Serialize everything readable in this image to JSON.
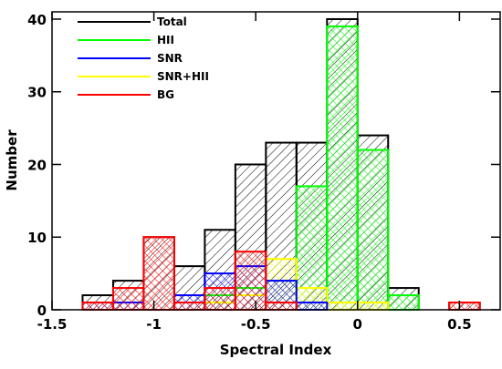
{
  "chart_data": {
    "type": "histogram",
    "xlabel": "Spectral Index",
    "ylabel": "Number",
    "bins": [
      -1.35,
      -1.2,
      -1.05,
      -0.9,
      -0.75,
      -0.6,
      -0.45,
      -0.3,
      -0.15,
      0.0,
      0.15,
      0.3,
      0.45,
      0.6
    ],
    "series": [
      {
        "name": "Total",
        "color": "#000000",
        "values": [
          2,
          4,
          10,
          6,
          11,
          20,
          23,
          23,
          40,
          24,
          3,
          0,
          1
        ]
      },
      {
        "name": "HII",
        "color": "#00ff00",
        "values": [
          0,
          0,
          0,
          0,
          2,
          3,
          4,
          17,
          39,
          22,
          2,
          0,
          0
        ]
      },
      {
        "name": "SNR",
        "color": "#0000ff",
        "values": [
          1,
          1,
          0,
          2,
          5,
          6,
          4,
          1,
          0,
          0,
          0,
          0,
          0
        ]
      },
      {
        "name": "SNR+HII",
        "color": "#ffff00",
        "values": [
          0,
          0,
          0,
          0,
          1,
          2,
          7,
          3,
          1,
          1,
          0,
          0,
          0
        ]
      },
      {
        "name": "BG",
        "color": "#ff0000",
        "values": [
          1,
          3,
          10,
          1,
          3,
          8,
          1,
          0,
          0,
          0,
          0,
          0,
          1
        ]
      }
    ],
    "xlim": [
      -1.5,
      0.7
    ],
    "ylim": [
      0,
      41
    ],
    "xticks": [
      -1.5,
      -1.0,
      -0.5,
      0.0,
      0.5
    ],
    "yticks": [
      0,
      10,
      20,
      30,
      40
    ],
    "legend": "upper left"
  }
}
